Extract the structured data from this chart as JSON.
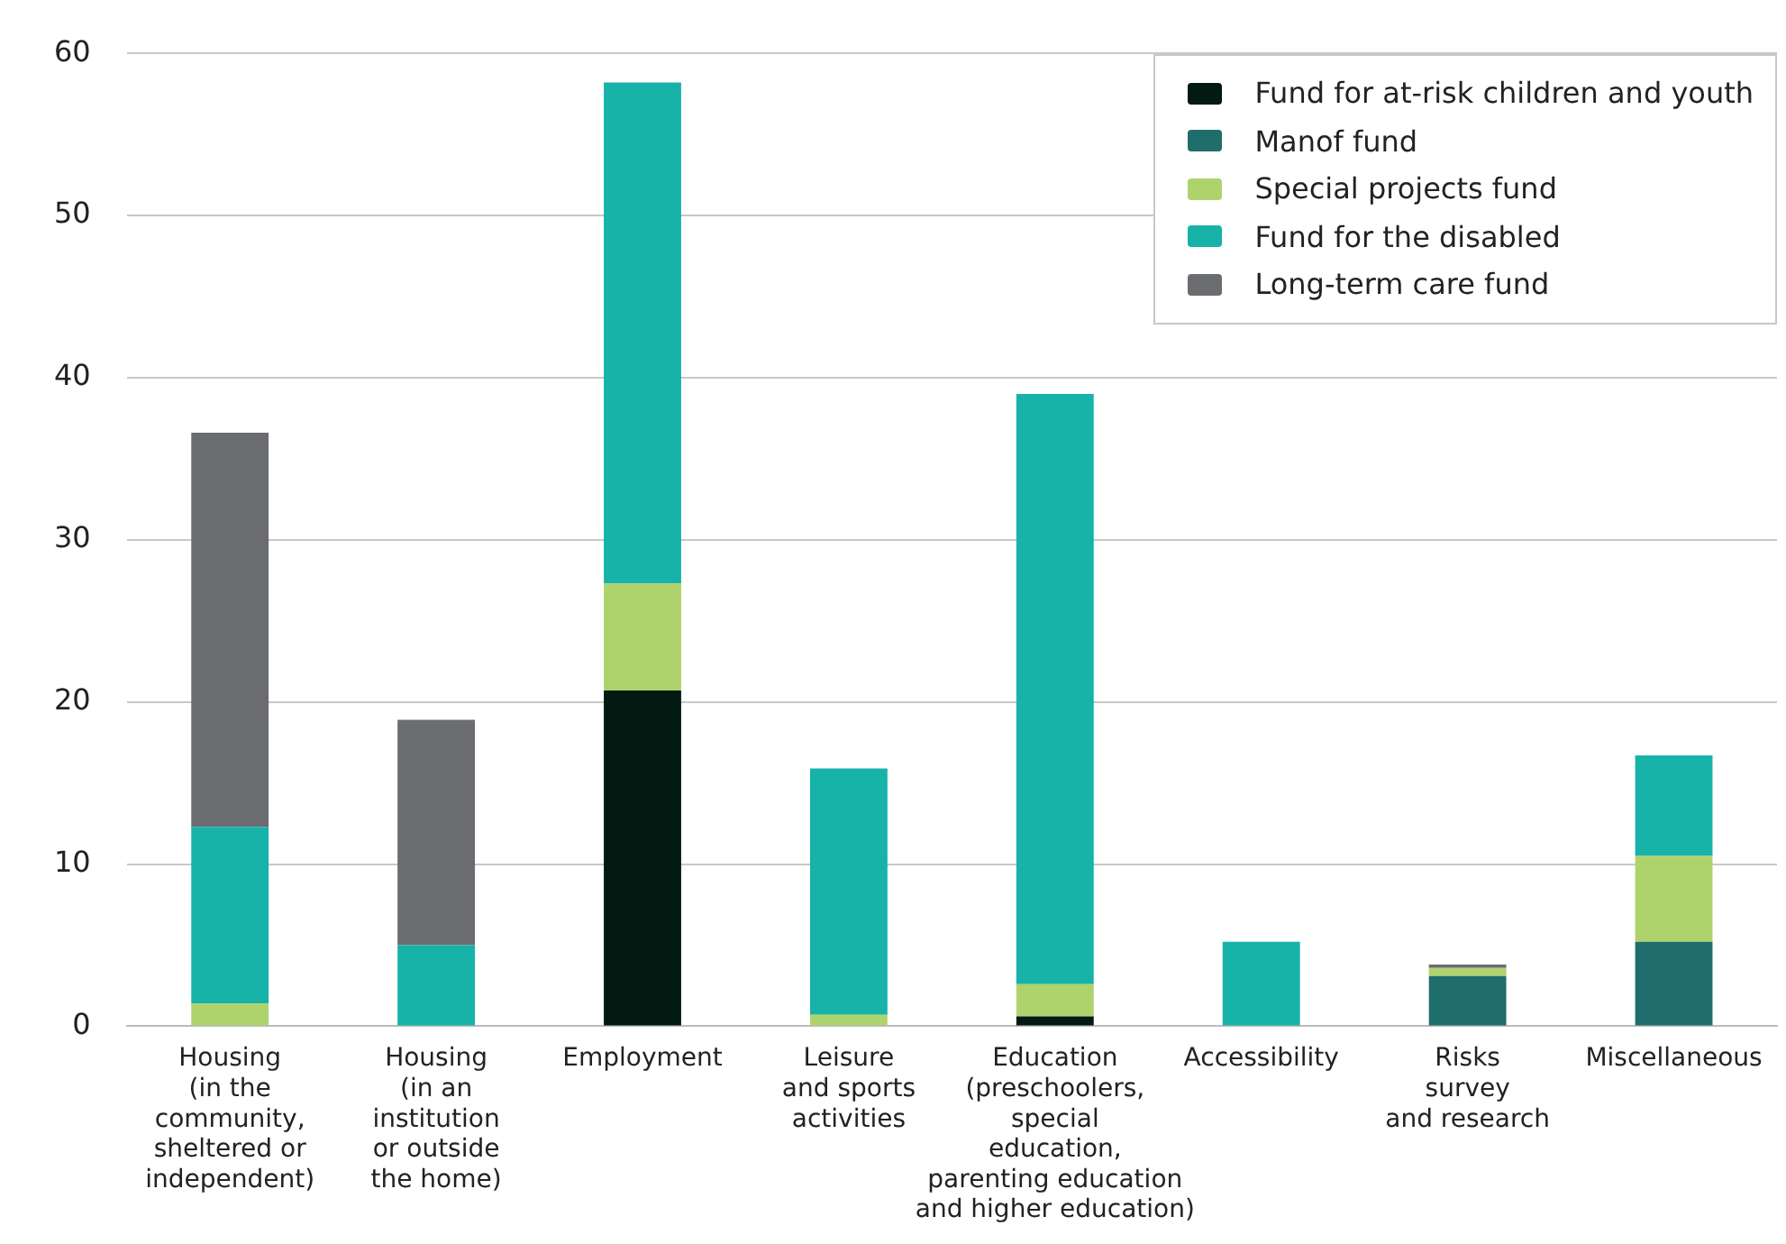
{
  "chart_data": {
    "type": "bar",
    "stacked": true,
    "categories": [
      "Housing\n(in the\ncommunity,\nsheltered or\nindependent)",
      "Housing\n(in an\ninstitution\nor outside\nthe home)",
      "Employment",
      "Leisure\nand sports\nactivities",
      "Education\n(preschoolers,\nspecial\neducation,\nparenting education\nand higher education)",
      "Accessibility",
      "Risks\nsurvey\nand research",
      "Miscellaneous"
    ],
    "series": [
      {
        "name": "Fund for at-risk children and youth",
        "color": "#021a12",
        "values": [
          0,
          0,
          20.7,
          0,
          0.6,
          0,
          0,
          0
        ]
      },
      {
        "name": "Manof fund",
        "color": "#1f6e6b",
        "values": [
          0,
          0,
          0,
          0,
          0,
          0,
          3.1,
          5.2
        ]
      },
      {
        "name": "Special projects fund",
        "color": "#aed36c",
        "values": [
          1.4,
          0,
          6.6,
          0.7,
          2.0,
          0,
          0.5,
          5.3
        ]
      },
      {
        "name": "Fund for the disabled",
        "color": "#17b2a8",
        "values": [
          10.9,
          5.0,
          30.9,
          15.2,
          36.4,
          5.2,
          0,
          6.2
        ]
      },
      {
        "name": "Long-term care fund",
        "color": "#6b6c70",
        "values": [
          24.3,
          13.9,
          0,
          0,
          0,
          0,
          0.2,
          0
        ]
      }
    ],
    "ylim": [
      0,
      60
    ],
    "yticks": [
      0,
      10,
      20,
      30,
      40,
      50,
      60
    ],
    "grid": "y",
    "legend": "top right"
  }
}
